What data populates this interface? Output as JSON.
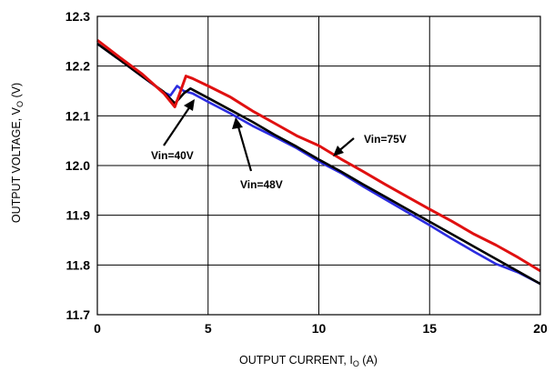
{
  "chart_data": {
    "type": "line",
    "xlabel": "OUTPUT CURRENT, I",
    "xlabel_sub": "O",
    "xlabel_unit": " (A)",
    "ylabel": "OUTPUT VOLTAGE, V",
    "ylabel_sub": "O",
    "ylabel_unit": " (V)",
    "xlim": [
      0,
      20
    ],
    "ylim": [
      11.7,
      12.3
    ],
    "xticks": [
      0,
      5,
      10,
      15,
      20
    ],
    "yticks": [
      11.7,
      11.8,
      11.9,
      12.0,
      12.1,
      12.2,
      12.3
    ],
    "ytick_labels": [
      "11.7",
      "11.8",
      "11.9",
      "12.0",
      "12.1",
      "12.2",
      "12.3"
    ],
    "grid": true,
    "series": [
      {
        "name": "Vin=40V",
        "color": "#2c2ce0",
        "x": [
          0,
          1,
          2,
          3,
          3.3,
          3.6,
          3.9,
          4.3,
          5,
          6,
          7,
          8,
          9,
          10,
          11,
          12,
          13,
          14,
          15,
          16,
          17,
          18,
          19,
          20
        ],
        "y": [
          12.245,
          12.213,
          12.18,
          12.147,
          12.141,
          12.16,
          12.15,
          12.145,
          12.128,
          12.105,
          12.08,
          12.058,
          12.035,
          12.008,
          11.985,
          11.958,
          11.932,
          11.906,
          11.88,
          11.853,
          11.827,
          11.802,
          11.785,
          11.762
        ]
      },
      {
        "name": "Vin=48V",
        "color": "#000000",
        "x": [
          0,
          1,
          2,
          3,
          3.5,
          3.9,
          4.2,
          5,
          6,
          7,
          8,
          9,
          10,
          11,
          12,
          13,
          14,
          15,
          16,
          17,
          18,
          19,
          20
        ],
        "y": [
          12.245,
          12.213,
          12.18,
          12.148,
          12.125,
          12.145,
          12.155,
          12.136,
          12.112,
          12.088,
          12.062,
          12.038,
          12.012,
          11.988,
          11.962,
          11.937,
          11.912,
          11.887,
          11.862,
          11.837,
          11.812,
          11.787,
          11.762
        ]
      },
      {
        "name": "Vin=75V",
        "color": "#e01010",
        "x": [
          0,
          1,
          2,
          3,
          3.5,
          4.0,
          4.3,
          5,
          6,
          7,
          8,
          9,
          10,
          11,
          12,
          13,
          14,
          15,
          16,
          17,
          18,
          19,
          20
        ],
        "y": [
          12.252,
          12.218,
          12.185,
          12.145,
          12.118,
          12.18,
          12.175,
          12.16,
          12.138,
          12.11,
          12.085,
          12.06,
          12.04,
          12.013,
          11.988,
          11.962,
          11.937,
          11.912,
          11.888,
          11.862,
          11.84,
          11.815,
          11.788
        ]
      }
    ],
    "annotations": [
      {
        "text": "Vin=40V",
        "series": "Vin=40V"
      },
      {
        "text": "Vin=48V",
        "series": "Vin=48V"
      },
      {
        "text": "Vin=75V",
        "series": "Vin=75V"
      }
    ]
  }
}
